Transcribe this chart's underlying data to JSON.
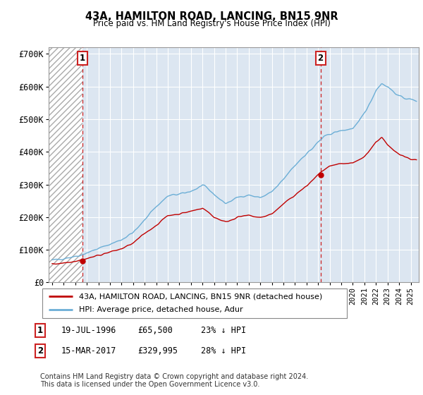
{
  "title": "43A, HAMILTON ROAD, LANCING, BN15 9NR",
  "subtitle": "Price paid vs. HM Land Registry's House Price Index (HPI)",
  "ylim": [
    0,
    720000
  ],
  "yticks": [
    0,
    100000,
    200000,
    300000,
    400000,
    500000,
    600000,
    700000
  ],
  "ytick_labels": [
    "£0",
    "£100K",
    "£200K",
    "£300K",
    "£400K",
    "£500K",
    "£600K",
    "£700K"
  ],
  "hpi_color": "#6baed6",
  "price_color": "#c00000",
  "marker_color": "#c00000",
  "background_color": "#dce6f1",
  "annotation1_year": 1996.6,
  "annotation2_year": 2017.2,
  "point1_price": 65500,
  "point2_price": 329995,
  "legend_line1": "43A, HAMILTON ROAD, LANCING, BN15 9NR (detached house)",
  "legend_line2": "HPI: Average price, detached house, Adur",
  "footer": "Contains HM Land Registry data © Crown copyright and database right 2024.\nThis data is licensed under the Open Government Licence v3.0.",
  "xlim_start": 1993.7,
  "xlim_end": 2025.7,
  "grid_color": "#ffffff",
  "hatch_region_end": 1996.6
}
